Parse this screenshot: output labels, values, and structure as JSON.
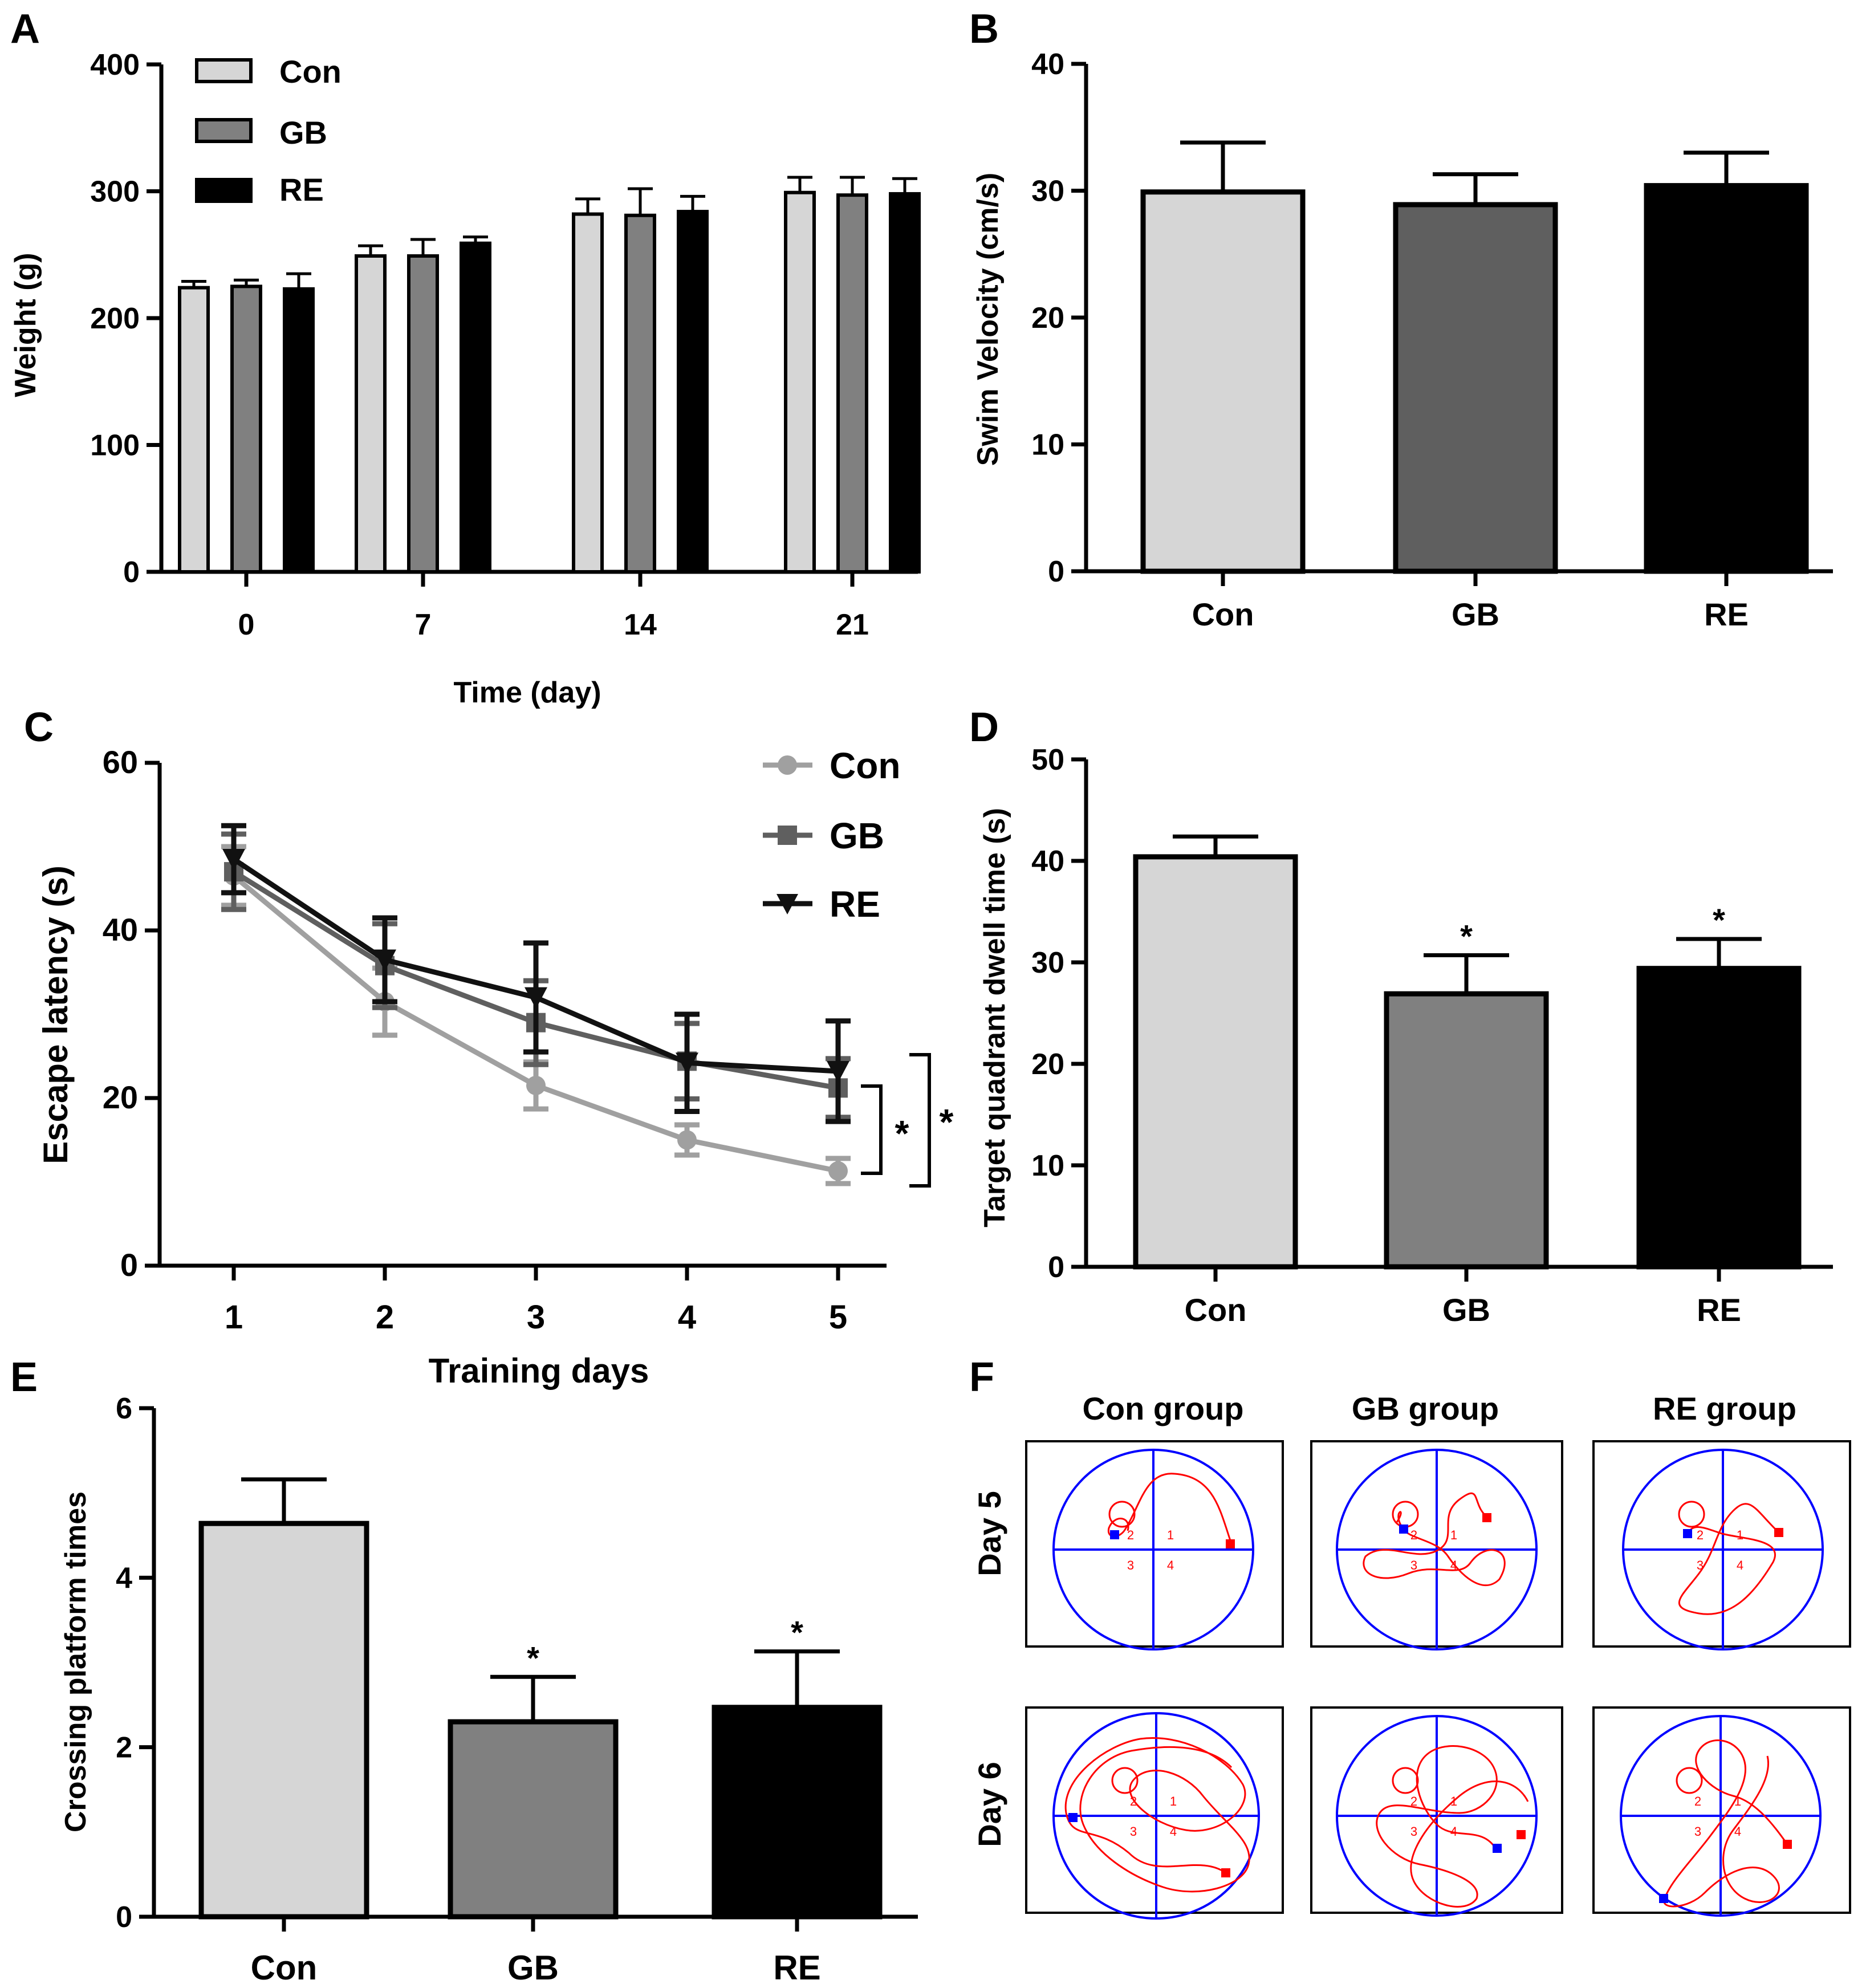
{
  "colors": {
    "con": "#d6d6d6",
    "gb": "#808080",
    "gb_b": "#5f5f5f",
    "re": "#000000",
    "con_line": "#a0a0a0",
    "gb_line": "#5f5f5f",
    "re_line": "#111111",
    "track": "#ff0000",
    "grid": "#0000ff"
  },
  "chart_data": [
    {
      "panel": "A",
      "type": "bar",
      "xlabel": "Time (day)",
      "ylabel": "Weight (g)",
      "ylim": [
        0,
        400
      ],
      "yticks": [
        0,
        100,
        200,
        300,
        400
      ],
      "categories": [
        "0",
        "7",
        "14",
        "21"
      ],
      "legend": [
        "Con",
        "GB",
        "RE"
      ],
      "series": [
        {
          "name": "Con",
          "values": [
            224,
            249,
            282,
            299
          ],
          "errors": [
            5,
            8,
            12,
            12
          ]
        },
        {
          "name": "GB",
          "values": [
            225,
            249,
            281,
            297
          ],
          "errors": [
            5,
            13,
            21,
            14
          ]
        },
        {
          "name": "RE",
          "values": [
            223,
            259,
            284,
            298
          ],
          "errors": [
            12,
            5,
            12,
            12
          ]
        }
      ]
    },
    {
      "panel": "B",
      "type": "bar",
      "ylabel": "Swim Velocity (cm/s)",
      "ylim": [
        0,
        40
      ],
      "yticks": [
        0,
        10,
        20,
        30,
        40
      ],
      "categories": [
        "Con",
        "GB",
        "RE"
      ],
      "values": [
        29.9,
        28.9,
        30.4
      ],
      "errors": [
        3.9,
        2.4,
        2.6
      ]
    },
    {
      "panel": "C",
      "type": "line",
      "xlabel": "Training days",
      "ylabel": "Escape latency (s)",
      "ylim": [
        0,
        60
      ],
      "yticks": [
        0,
        20,
        40,
        60
      ],
      "x": [
        1,
        2,
        3,
        4,
        5
      ],
      "legend": [
        "Con",
        "GB",
        "RE"
      ],
      "series": [
        {
          "name": "Con",
          "marker": "circle",
          "values": [
            46.5,
            31.5,
            21.5,
            15.0,
            11.3
          ],
          "errors": [
            3.5,
            4.0,
            2.8,
            1.8,
            1.5
          ]
        },
        {
          "name": "GB",
          "marker": "square",
          "values": [
            47.0,
            35.8,
            29.0,
            24.4,
            21.2
          ],
          "errors": [
            4.5,
            5.0,
            5.0,
            4.5,
            3.5
          ]
        },
        {
          "name": "RE",
          "marker": "triangle-down",
          "values": [
            48.5,
            36.5,
            32.0,
            24.2,
            23.2
          ],
          "errors": [
            4.0,
            5.0,
            6.5,
            5.8,
            6.0
          ]
        }
      ],
      "significance": [
        "*",
        "*"
      ]
    },
    {
      "panel": "D",
      "type": "bar",
      "ylabel": "Target quadrant dwell time (s)",
      "ylim": [
        0,
        50
      ],
      "yticks": [
        0,
        10,
        20,
        30,
        40,
        50
      ],
      "categories": [
        "Con",
        "GB",
        "RE"
      ],
      "values": [
        40.4,
        26.9,
        29.4
      ],
      "errors": [
        2.0,
        3.8,
        2.9
      ],
      "significance": [
        "",
        "*",
        "*"
      ]
    },
    {
      "panel": "E",
      "type": "bar",
      "ylabel": "Crossing platform times",
      "ylim": [
        0,
        6
      ],
      "yticks": [
        0,
        2,
        4,
        6
      ],
      "categories": [
        "Con",
        "GB",
        "RE"
      ],
      "values": [
        4.64,
        2.3,
        2.47
      ],
      "errors": [
        0.52,
        0.53,
        0.66
      ],
      "significance": [
        "",
        "*",
        "*"
      ]
    }
  ],
  "panel_f": {
    "letter": "F",
    "columns": [
      "Con group",
      "GB group",
      "RE group"
    ],
    "rows": [
      "Day 5",
      "Day 6"
    ],
    "quadrants": [
      "1",
      "2",
      "3",
      "4"
    ]
  }
}
